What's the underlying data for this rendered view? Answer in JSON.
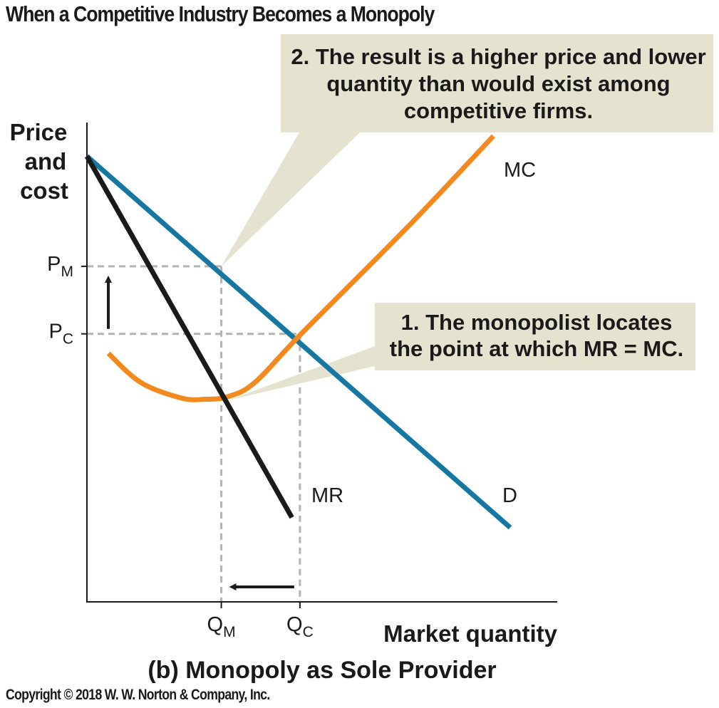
{
  "title": "When a Competitive Industry Becomes a Monopoly",
  "copyright": "Copyright © 2018 W. W. Norton & Company, Inc.",
  "panel_caption": "(b) Monopoly as Sole Provider",
  "colors": {
    "demand": "#1777a3",
    "mc": "#f38a1f",
    "mr": "#1a1a1a",
    "guide": "#b3b3b3",
    "callout_bg": "#e5e2d0"
  },
  "chart_data": {
    "type": "line",
    "title": "",
    "xlabel": "Market quantity",
    "ylabel": [
      "Price",
      "and",
      "cost"
    ],
    "y_ticks": [
      {
        "main": "P",
        "sub": "M",
        "level": "P_M"
      },
      {
        "main": "P",
        "sub": "C",
        "level": "P_C"
      }
    ],
    "x_ticks": [
      {
        "main": "Q",
        "sub": "M",
        "level": "Q_M"
      },
      {
        "main": "Q",
        "sub": "C",
        "level": "Q_C"
      }
    ],
    "grid": false,
    "series": [
      {
        "name": "D",
        "color": "#1777a3",
        "points": [
          [
            0,
            6.6
          ],
          [
            6.3,
            1.1
          ]
        ]
      },
      {
        "name": "MR",
        "color": "#1a1a1a",
        "points": [
          [
            0,
            6.6
          ],
          [
            3.05,
            1.25
          ]
        ]
      },
      {
        "name": "MC",
        "color": "#f38a1f",
        "points": [
          [
            0.32,
            3.68
          ],
          [
            0.8,
            3.25
          ],
          [
            1.4,
            3.02
          ],
          [
            1.75,
            3.0
          ],
          [
            2.1,
            3.04
          ],
          [
            2.5,
            3.25
          ],
          [
            3.2,
            3.98
          ],
          [
            4.8,
            5.58
          ],
          [
            6.05,
            6.9
          ]
        ]
      }
    ],
    "reference_levels": {
      "P_M": 4.97,
      "P_C": 3.97,
      "Q_M": 2.0,
      "Q_C": 3.17
    },
    "xlim": [
      0,
      7
    ],
    "ylim": [
      0,
      7.1
    ],
    "annotations": [
      {
        "id": "callout-1",
        "text": [
          "1. The monopolist locates",
          "the point at which MR = MC."
        ],
        "points_to": [
          2.0,
          3.05
        ]
      },
      {
        "id": "callout-2",
        "text": [
          "2. The result is a higher price and lower",
          "quantity than would exist among",
          "competitive firms."
        ],
        "points_to": [
          2.0,
          4.97
        ]
      }
    ],
    "arrows": [
      {
        "id": "price-up-arrow",
        "direction": "up",
        "from": "P_C",
        "to": "P_M"
      },
      {
        "id": "quantity-left-arrow",
        "direction": "left",
        "from": "Q_C",
        "to": "Q_M"
      }
    ]
  }
}
